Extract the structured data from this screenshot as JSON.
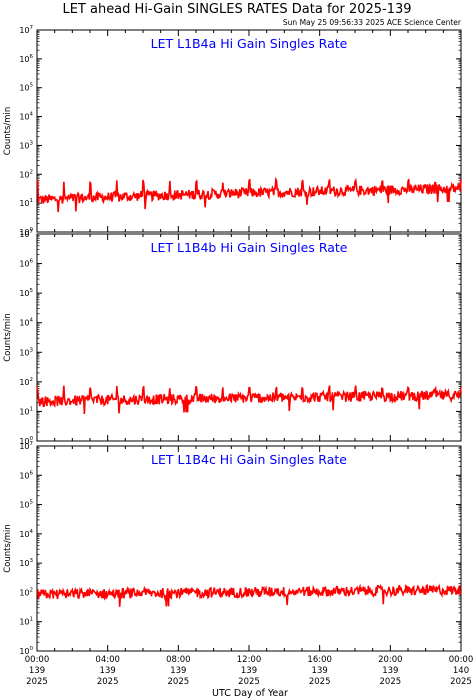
{
  "header": {
    "title": "LET ahead Hi-Gain SINGLES RATES Data for 2025-139",
    "timestamp": "Sun May 25 09:56:33 2025 ACE Science Center"
  },
  "colors": {
    "series": "#ff0000",
    "panel_title": "#0000ff",
    "axes": "#000000"
  },
  "chart_data": [
    {
      "type": "line",
      "title": "LET L1B4a Hi Gain Singles Rate",
      "ylabel": "Counts/min",
      "yscale": "log",
      "ylim": [
        1,
        10000000
      ],
      "xlim": [
        0,
        24
      ],
      "series": [
        {
          "base_start": 13,
          "base_end": 32,
          "spike_peak": 70
        }
      ]
    },
    {
      "type": "line",
      "title": "LET L1B4b Hi Gain Singles Rate",
      "ylabel": "Counts/min",
      "yscale": "log",
      "ylim": [
        1,
        10000000
      ],
      "xlim": [
        0,
        24
      ],
      "series": [
        {
          "base_start": 22,
          "base_end": 35,
          "spike_peak": 75
        }
      ]
    },
    {
      "type": "line",
      "title": "LET L1B4c Hi Gain Singles Rate",
      "ylabel": "Counts/min",
      "yscale": "log",
      "ylim": [
        1,
        10000000
      ],
      "xlim": [
        0,
        24
      ],
      "series": [
        {
          "base_start": 85,
          "base_end": 120,
          "spike_peak": 130
        }
      ]
    }
  ],
  "y_ticks": [
    {
      "base": "10",
      "exp": "0"
    },
    {
      "base": "10",
      "exp": "1"
    },
    {
      "base": "10",
      "exp": "2"
    },
    {
      "base": "10",
      "exp": "3"
    },
    {
      "base": "10",
      "exp": "4"
    },
    {
      "base": "10",
      "exp": "5"
    },
    {
      "base": "10",
      "exp": "6"
    },
    {
      "base": "10",
      "exp": "7"
    }
  ],
  "x_ticks": [
    {
      "hour": 0,
      "time": "00:00",
      "doy": "139",
      "year": "2025"
    },
    {
      "hour": 4,
      "time": "04:00",
      "doy": "139",
      "year": "2025"
    },
    {
      "hour": 8,
      "time": "08:00",
      "doy": "139",
      "year": "2025"
    },
    {
      "hour": 12,
      "time": "12:00",
      "doy": "139",
      "year": "2025"
    },
    {
      "hour": 16,
      "time": "16:00",
      "doy": "139",
      "year": "2025"
    },
    {
      "hour": 20,
      "time": "20:00",
      "doy": "139",
      "year": "2025"
    },
    {
      "hour": 24,
      "time": "00:00",
      "doy": "140",
      "year": "2025"
    }
  ],
  "xlabel": "UTC Day of Year"
}
